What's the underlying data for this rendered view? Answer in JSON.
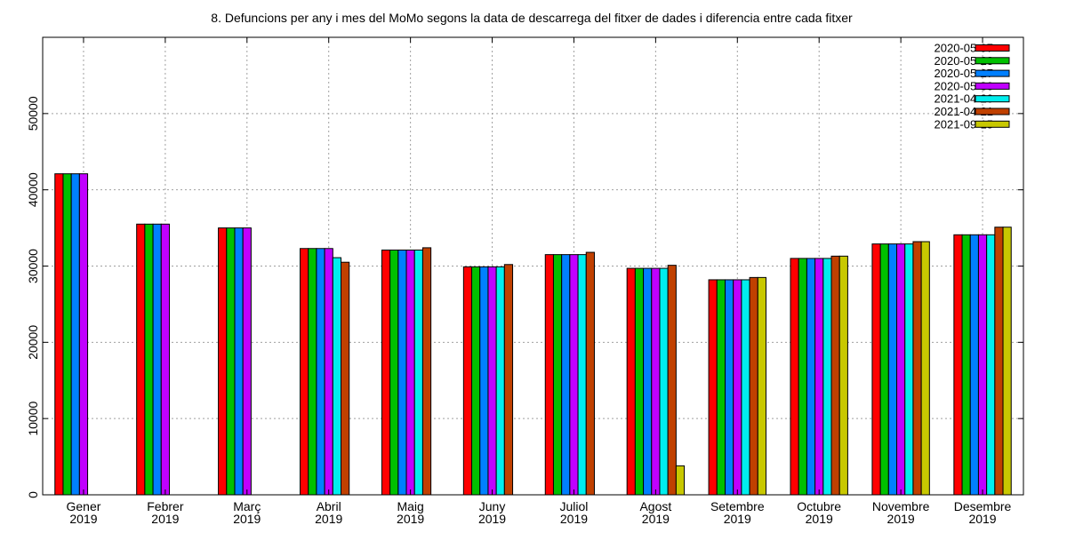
{
  "chart_data": {
    "type": "bar",
    "title": "8. Defuncions per any i mes del MoMo segons la data de descarrega del fitxer de dades i diferencia entre cada fitxer",
    "xlabel": "",
    "ylabel": "",
    "ylim": [
      0,
      60000
    ],
    "yticks": [
      "0",
      "10000",
      "20000",
      "30000",
      "40000",
      "50000"
    ],
    "grid": true,
    "legend_position": "top-right",
    "categories": [
      [
        "Gener",
        "2019"
      ],
      [
        "Febrer",
        "2019"
      ],
      [
        "Març",
        "2019"
      ],
      [
        "Abril",
        "2019"
      ],
      [
        "Maig",
        "2019"
      ],
      [
        "Juny",
        "2019"
      ],
      [
        "Juliol",
        "2019"
      ],
      [
        "Agost",
        "2019"
      ],
      [
        "Setembre",
        "2019"
      ],
      [
        "Octubre",
        "2019"
      ],
      [
        "Novembre",
        "2019"
      ],
      [
        "Desembre",
        "2019"
      ]
    ],
    "series": [
      {
        "name": "2020-05-07",
        "color": "#ff0000",
        "values": [
          42100,
          35500,
          35000,
          32300,
          32100,
          29900,
          31500,
          29700,
          28200,
          31000,
          32900,
          34100
        ]
      },
      {
        "name": "2020-05-23",
        "color": "#00c000",
        "values": [
          42100,
          35500,
          35000,
          32300,
          32100,
          29900,
          31500,
          29700,
          28200,
          31000,
          32900,
          34100
        ]
      },
      {
        "name": "2020-05-27",
        "color": "#0080ff",
        "values": [
          42100,
          35500,
          35000,
          32300,
          32100,
          29900,
          31500,
          29700,
          28200,
          31000,
          32900,
          34100
        ]
      },
      {
        "name": "2020-05-30",
        "color": "#c000ff",
        "values": [
          42100,
          35500,
          35000,
          32300,
          32100,
          29900,
          31500,
          29700,
          28200,
          31000,
          32900,
          34100
        ]
      },
      {
        "name": "2021-04-20",
        "color": "#00eeee",
        "values": [
          null,
          null,
          null,
          31100,
          32100,
          29900,
          31500,
          29700,
          28200,
          31000,
          32900,
          34100
        ]
      },
      {
        "name": "2021-04-21",
        "color": "#c04000",
        "values": [
          null,
          null,
          null,
          30500,
          32400,
          30200,
          31800,
          30100,
          28500,
          31300,
          33200,
          35100
        ]
      },
      {
        "name": "2021-09-15",
        "color": "#c8c800",
        "values": [
          null,
          null,
          null,
          null,
          null,
          null,
          null,
          3800,
          28500,
          31300,
          33200,
          35100
        ]
      }
    ]
  }
}
